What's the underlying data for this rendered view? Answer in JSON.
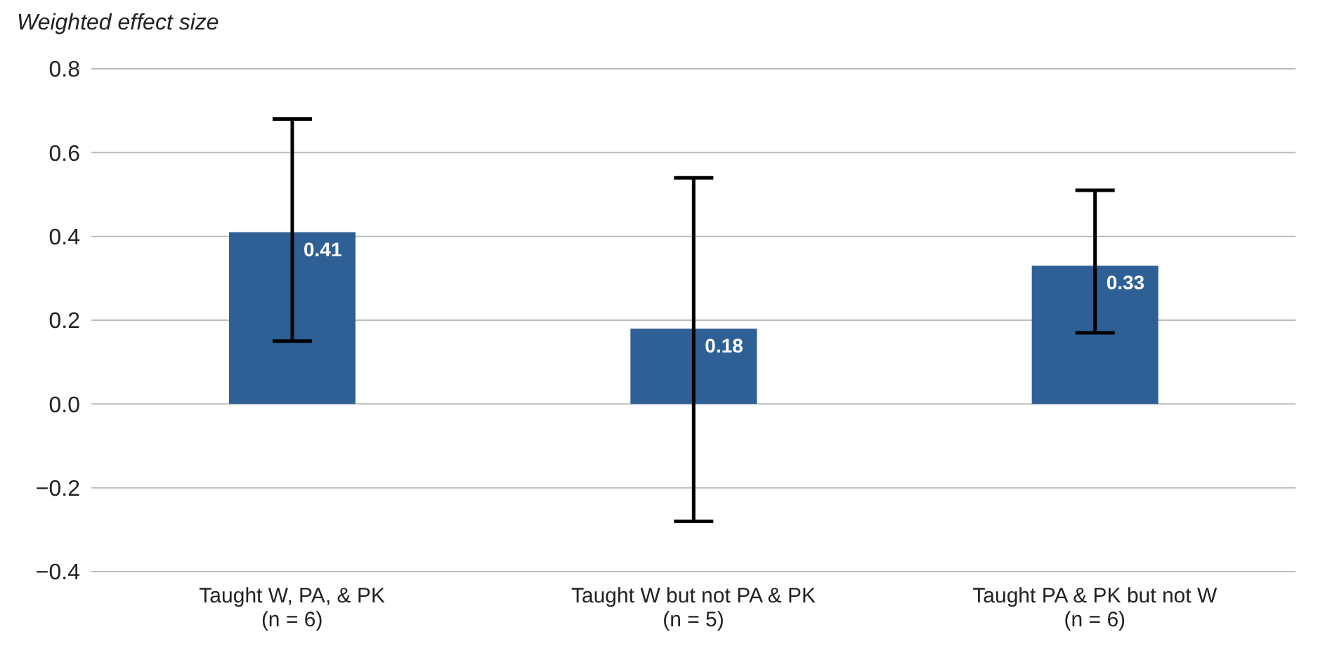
{
  "chart_data": {
    "type": "bar",
    "ylabel": "Weighted effect size",
    "categories": [
      "Taught W, PA, & PK\n(n = 6)",
      "Taught W but not PA & PK\n(n = 5)",
      "Taught PA & PK but not W\n(n = 6)"
    ],
    "values": [
      0.41,
      0.18,
      0.33
    ],
    "color": "#2e6096",
    "errors": [
      [
        0.15,
        0.68
      ],
      [
        -0.28,
        0.54
      ],
      [
        0.17,
        0.51
      ]
    ],
    "data_labels": true,
    "ylim": [
      -0.4,
      0.8
    ],
    "yticks": [
      {
        "value": -0.4,
        "label": "−0.4"
      },
      {
        "value": -0.2,
        "label": "−0.2"
      },
      {
        "value": 0,
        "label": "0.0"
      },
      {
        "value": 0.2,
        "label": "0.2"
      },
      {
        "value": 0.4,
        "label": "0.4"
      },
      {
        "value": 0.6,
        "label": "0.6"
      },
      {
        "value": 0.8,
        "label": "0.8"
      }
    ],
    "grid": "y"
  }
}
